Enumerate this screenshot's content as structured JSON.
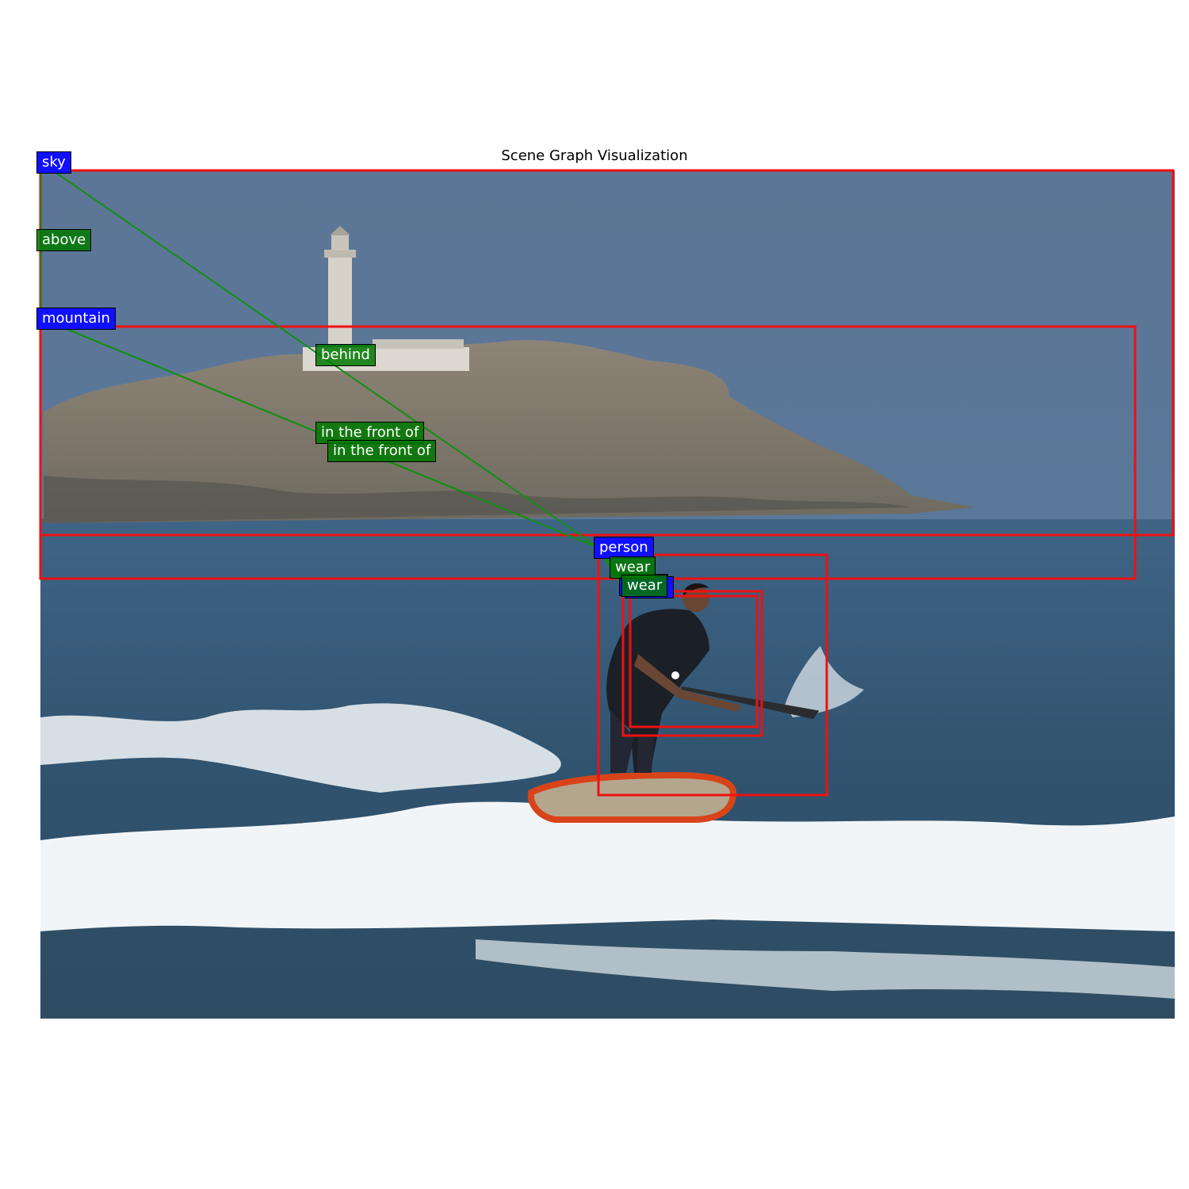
{
  "title": "Scene Graph Visualization",
  "colors": {
    "box": "#ee1111",
    "object_label_bg": "#1010ff",
    "relation_label_bg": "#0a7a0a",
    "relation_line": "#138f13"
  },
  "objects": [
    {
      "id": "sky",
      "label": "sky"
    },
    {
      "id": "mountain",
      "label": "mountain"
    },
    {
      "id": "person",
      "label": "person"
    },
    {
      "id": "wetsuit-1",
      "label": ""
    },
    {
      "id": "wetsuit-2",
      "label": ""
    }
  ],
  "relations": [
    {
      "subject": "sky",
      "predicate": "above",
      "object": "mountain"
    },
    {
      "subject": "sky",
      "predicate": "behind",
      "object": "person"
    },
    {
      "subject": "mountain",
      "predicate": "in the front of",
      "object": "person"
    },
    {
      "subject": "mountain",
      "predicate": "in the front of",
      "object": "person"
    },
    {
      "subject": "person",
      "predicate": "wear",
      "object": "wetsuit-1"
    },
    {
      "subject": "person",
      "predicate": "wear",
      "object": "wetsuit-2"
    }
  ]
}
